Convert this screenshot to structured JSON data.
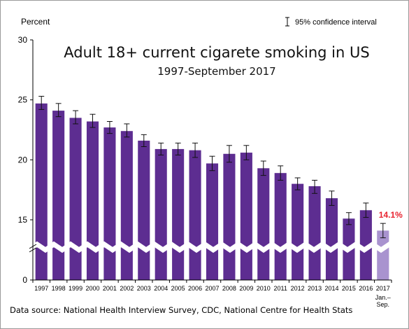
{
  "chart_data": {
    "type": "bar",
    "title": "Adult 18+ current cigarete smoking in US",
    "subtitle": "1997-September 2017",
    "ylabel": "Percent",
    "legend": "95% confidence interval",
    "source": "Data source: National Health Interview Survey, CDC, National Centre for Health Stats",
    "ylim": [
      0,
      30
    ],
    "yticks": [
      0,
      15,
      20,
      25,
      30
    ],
    "axis_break": true,
    "grid": false,
    "categories": [
      "1997",
      "1998",
      "1999",
      "2000",
      "2001",
      "2002",
      "2003",
      "2004",
      "2005",
      "2006",
      "2007",
      "2008",
      "2009",
      "2010",
      "2011",
      "2012",
      "2013",
      "2014",
      "2015",
      "2016",
      "2017"
    ],
    "category_sublabels": {
      "2017": [
        "Jan.–",
        "Sep."
      ]
    },
    "values": [
      24.7,
      24.1,
      23.5,
      23.2,
      22.7,
      22.4,
      21.6,
      20.9,
      20.9,
      20.8,
      19.7,
      20.5,
      20.6,
      19.3,
      18.9,
      18.0,
      17.8,
      16.8,
      15.1,
      15.8,
      14.1
    ],
    "ci_low": [
      24.2,
      23.6,
      23.0,
      22.7,
      22.2,
      21.9,
      21.1,
      20.4,
      20.4,
      20.2,
      19.1,
      19.8,
      20.0,
      18.7,
      18.3,
      17.5,
      17.2,
      16.2,
      14.6,
      15.2,
      13.5
    ],
    "ci_high": [
      25.3,
      24.7,
      24.1,
      23.8,
      23.2,
      23.0,
      22.1,
      21.4,
      21.4,
      21.4,
      20.3,
      21.2,
      21.2,
      19.9,
      19.5,
      18.5,
      18.3,
      17.4,
      15.6,
      16.4,
      14.7
    ],
    "annotations": [
      {
        "category": "2017",
        "text": "14.1%",
        "color": "#e8232f"
      }
    ],
    "colors": {
      "bar": "#5d2d91",
      "highlight_bar": "#a993cf",
      "annotation": "#e8232f"
    }
  }
}
